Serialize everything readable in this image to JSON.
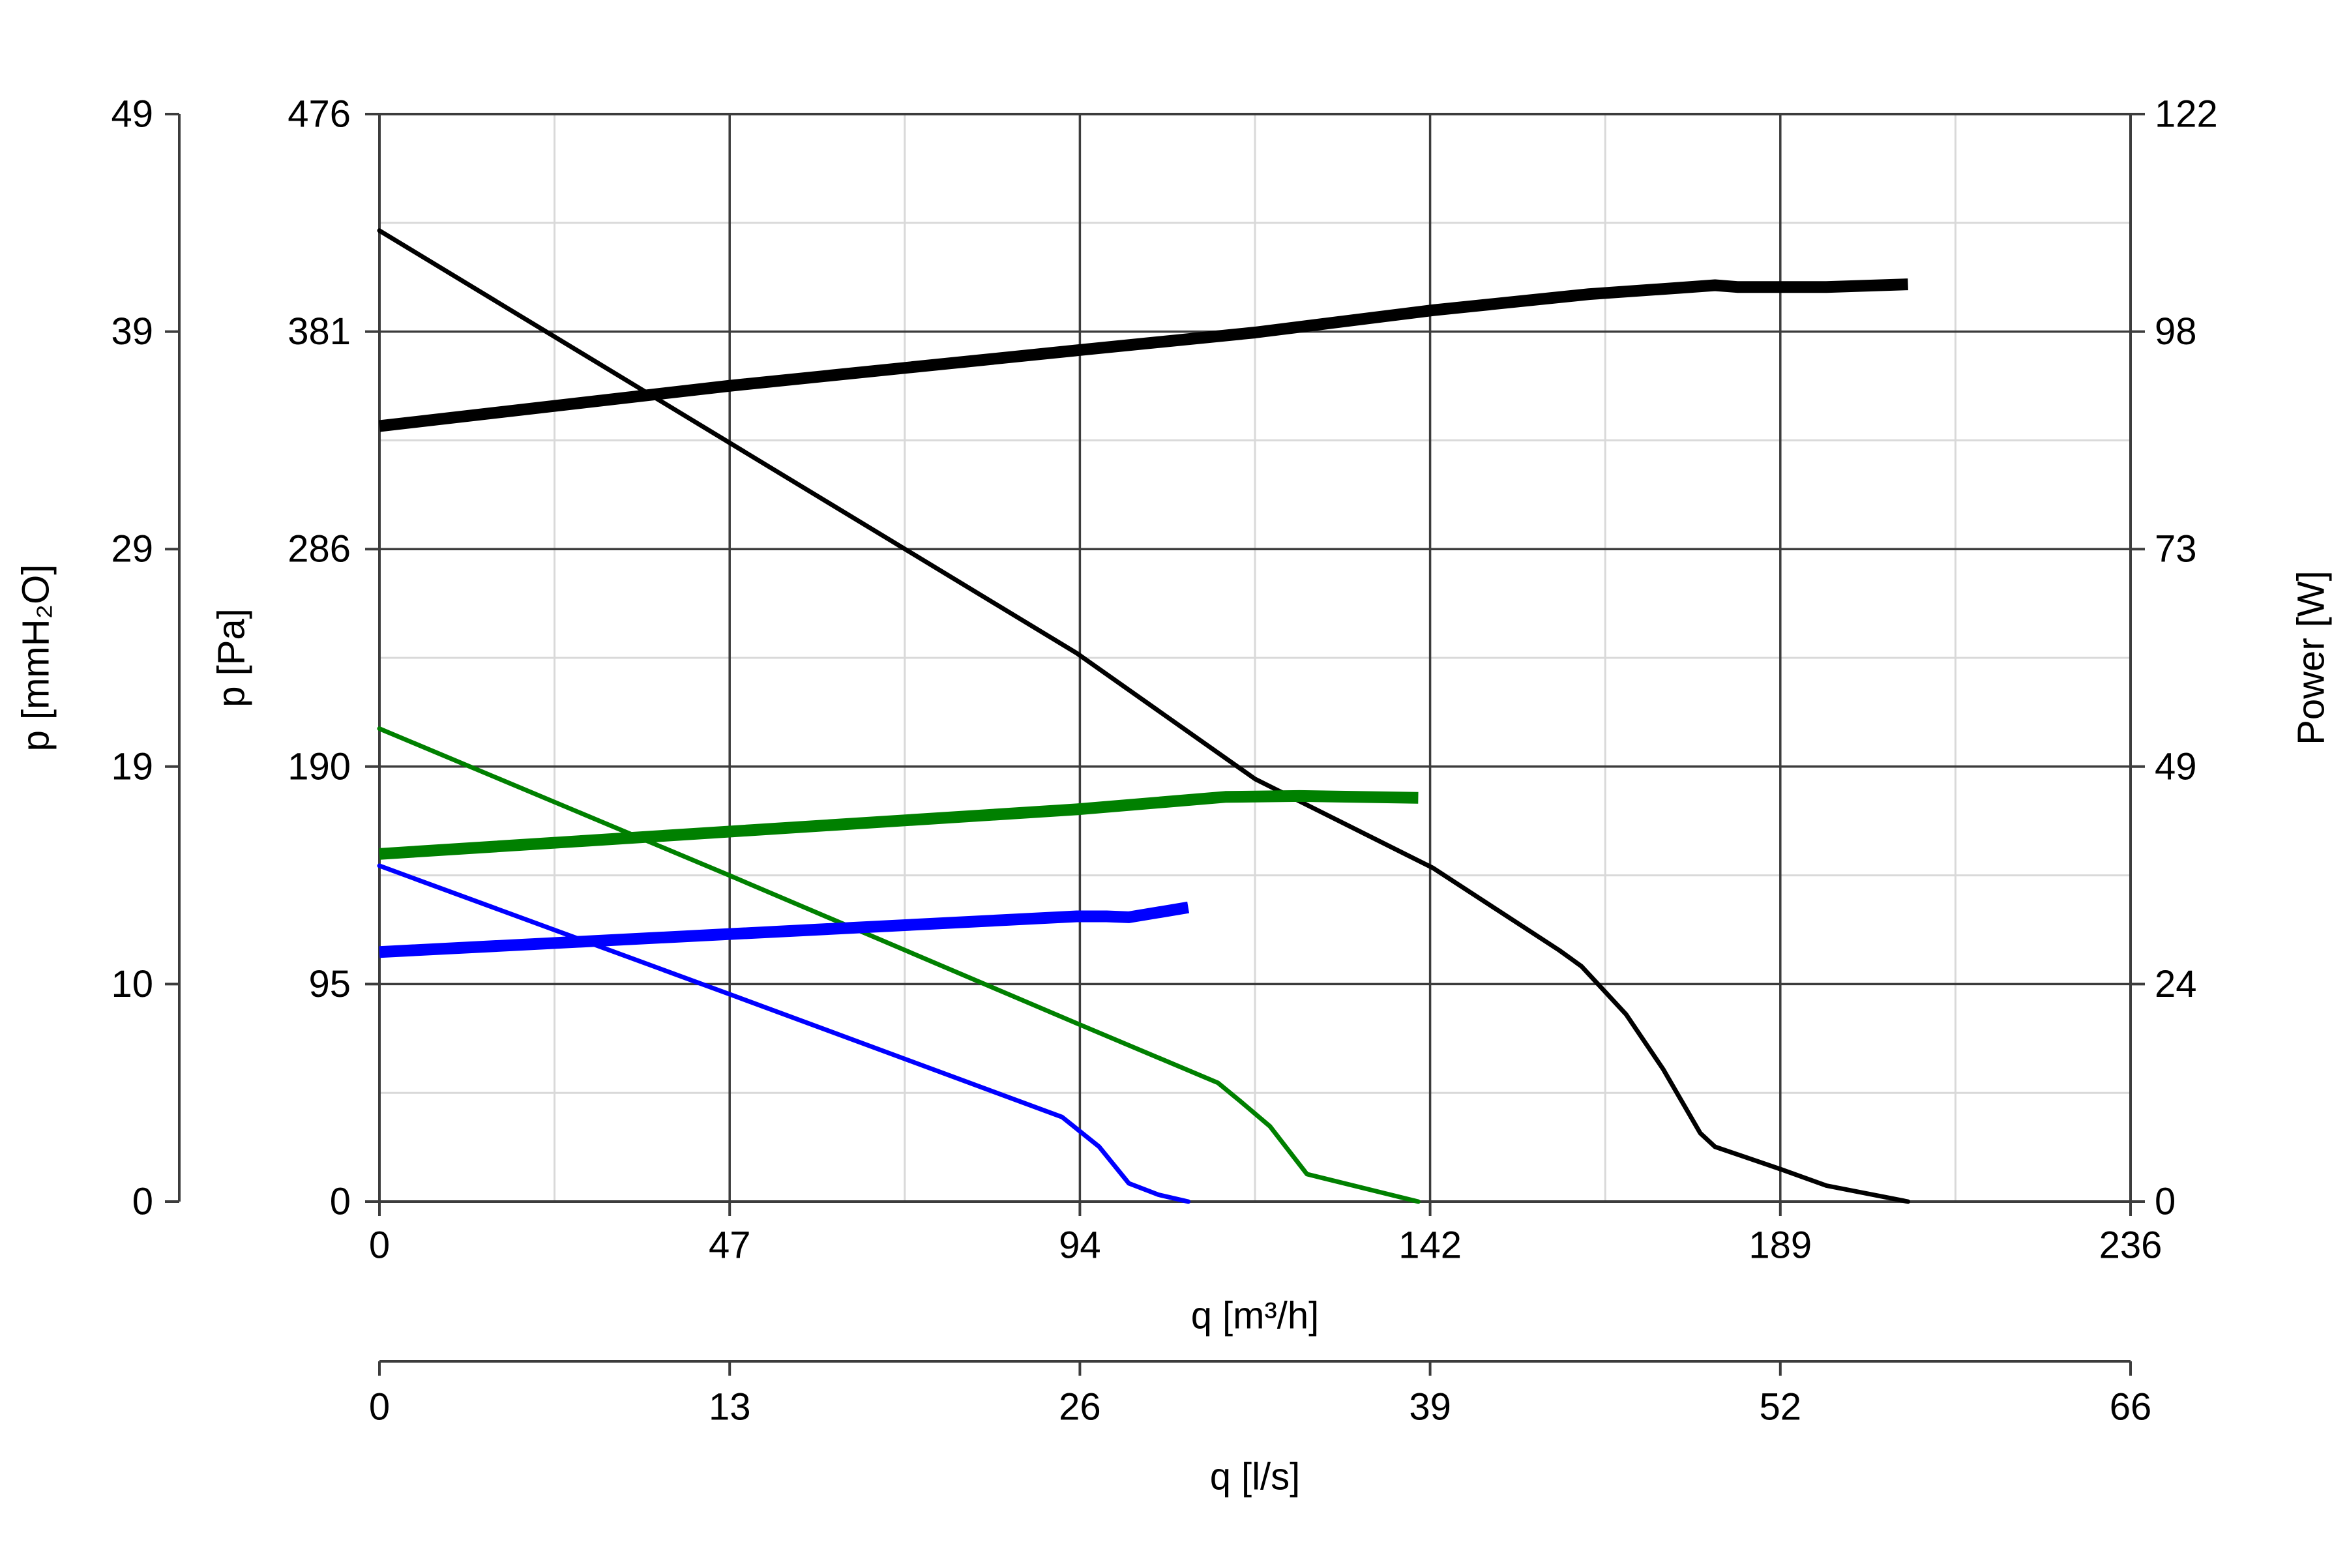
{
  "chart_data": {
    "type": "line",
    "title": "",
    "grid": true,
    "legend": "none",
    "axes": {
      "x_primary": {
        "label": "q [m³/h]",
        "range": [
          0,
          236
        ],
        "ticks": [
          "0",
          "47",
          "94",
          "142",
          "189",
          "236"
        ]
      },
      "x_secondary": {
        "label": "q [l/s]",
        "range": [
          0,
          66
        ],
        "ticks": [
          "0",
          "13",
          "26",
          "39",
          "52",
          "66"
        ]
      },
      "y_left_pa": {
        "label": "p [Pa]",
        "range": [
          0,
          476
        ],
        "ticks": [
          "0",
          "95",
          "190",
          "286",
          "381",
          "476"
        ]
      },
      "y_left_mmh2o": {
        "label": "p [mmH₂O]",
        "range": [
          0,
          49
        ],
        "ticks": [
          "0",
          "10",
          "19",
          "29",
          "39",
          "49"
        ]
      },
      "y_right_power": {
        "label": "Power [W]",
        "range": [
          0,
          122
        ],
        "ticks": [
          "0",
          "24",
          "49",
          "73",
          "98",
          "122"
        ]
      }
    },
    "series": [
      {
        "kind": "pressure",
        "axis": "y_left_pa",
        "color": "#000000",
        "points": [
          [
            0,
            425
          ],
          [
            94,
            240
          ],
          [
            118,
            185
          ],
          [
            142,
            146
          ],
          [
            159,
            110
          ],
          [
            162,
            103
          ],
          [
            168,
            82
          ],
          [
            173,
            58
          ],
          [
            178,
            30
          ],
          [
            180,
            24
          ],
          [
            189,
            14
          ],
          [
            195,
            7
          ],
          [
            206,
            0
          ]
        ]
      },
      {
        "kind": "power",
        "axis": "y_right_power",
        "color": "#000000",
        "points": [
          [
            0,
            87
          ],
          [
            47,
            91.5
          ],
          [
            94,
            95.5
          ],
          [
            118,
            97.5
          ],
          [
            142,
            100
          ],
          [
            163,
            101.8
          ],
          [
            175,
            102.5
          ],
          [
            180,
            102.8
          ],
          [
            183,
            102.6
          ],
          [
            195,
            102.6
          ],
          [
            206,
            102.9
          ]
        ]
      },
      {
        "kind": "pressure",
        "axis": "y_left_pa",
        "color": "#008000",
        "points": [
          [
            0,
            207
          ],
          [
            47,
            143
          ],
          [
            94,
            78
          ],
          [
            113,
            52
          ],
          [
            116,
            44
          ],
          [
            120,
            33
          ],
          [
            125,
            12
          ],
          [
            140,
            0
          ]
        ]
      },
      {
        "kind": "power",
        "axis": "y_right_power",
        "color": "#008000",
        "points": [
          [
            0,
            39
          ],
          [
            47,
            41.5
          ],
          [
            94,
            44
          ],
          [
            114,
            45.4
          ],
          [
            124,
            45.5
          ],
          [
            140,
            45.3
          ]
        ]
      },
      {
        "kind": "pressure",
        "axis": "y_left_pa",
        "color": "#0000ff",
        "points": [
          [
            0,
            147
          ],
          [
            47,
            91
          ],
          [
            92,
            37
          ],
          [
            97,
            24
          ],
          [
            101,
            8
          ],
          [
            105,
            3
          ],
          [
            109,
            0
          ]
        ]
      },
      {
        "kind": "power",
        "axis": "y_right_power",
        "color": "#0000ff",
        "points": [
          [
            0,
            28
          ],
          [
            47,
            30
          ],
          [
            94,
            32
          ],
          [
            98,
            32
          ],
          [
            101,
            31.9
          ],
          [
            109,
            33
          ]
        ]
      }
    ]
  }
}
